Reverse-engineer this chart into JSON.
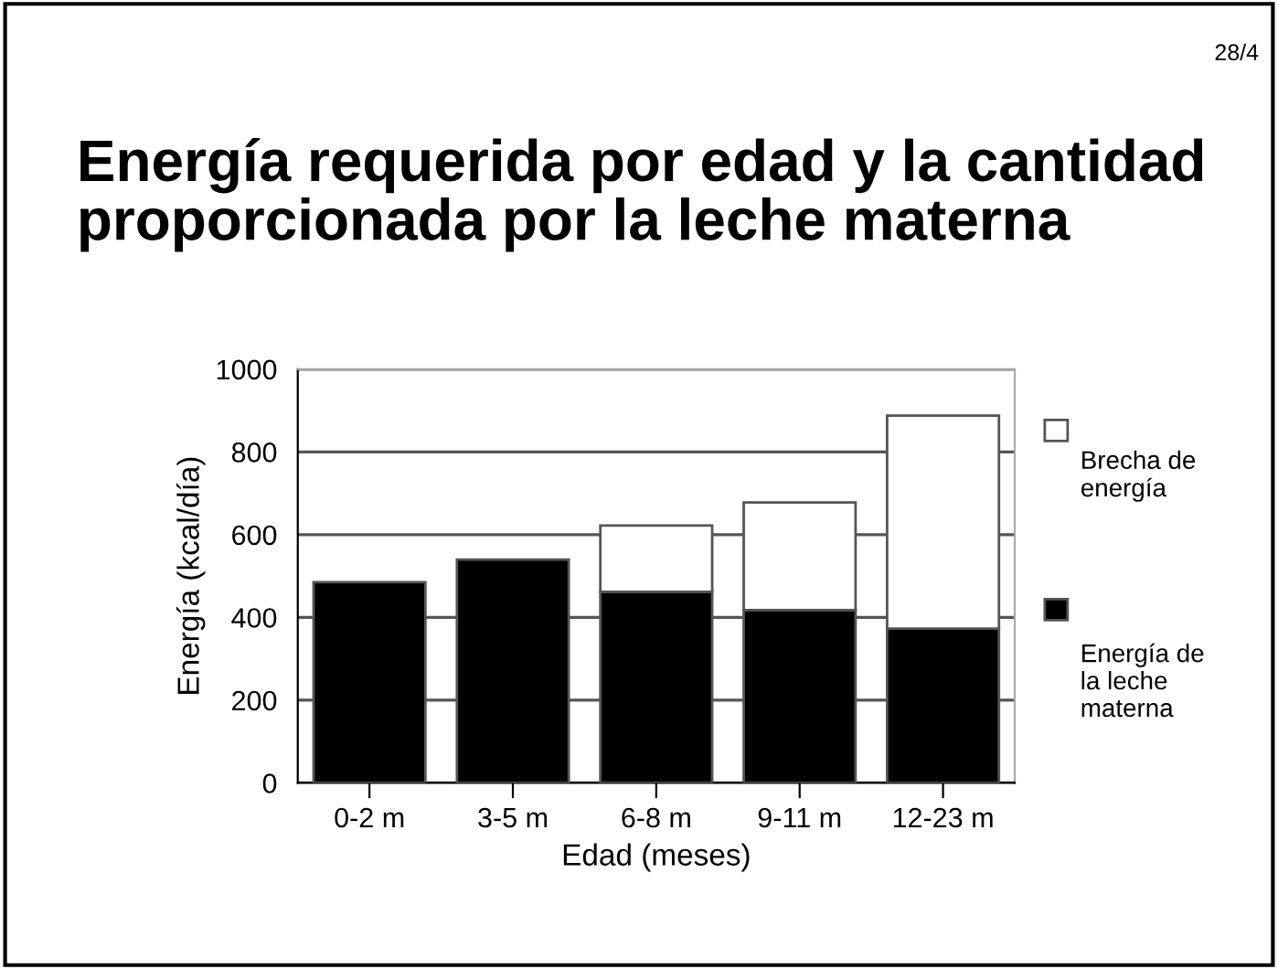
{
  "chart_data": {
    "type": "bar",
    "title": "Energía requerida por edad y la cantidad proporcionada por la leche materna",
    "xlabel": "Edad (meses)",
    "ylabel": "Energía (kcal/día)",
    "annotations": [
      "28/4"
    ],
    "categories": [
      "0-2 m",
      "3-5 m",
      "6-8 m",
      "9-11 m",
      "12-23 m"
    ],
    "stacked": true,
    "series": [
      {
        "name": "Energía de la leche materna",
        "color": "#000000",
        "values": [
          485,
          540,
          462,
          418,
          373
        ]
      },
      {
        "name": "Brecha de energía",
        "color": "#ffffff",
        "values": [
          null,
          null,
          160,
          260,
          515
        ]
      }
    ],
    "ylim": [
      0,
      1000
    ],
    "yticks": [
      0,
      200,
      400,
      600,
      800,
      1000
    ],
    "grid": "y",
    "legend": "right"
  }
}
